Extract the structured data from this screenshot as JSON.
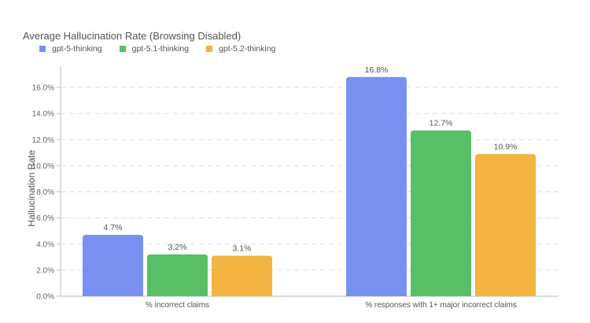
{
  "chart_data": {
    "type": "bar",
    "title": "Average Hallucination Rate (Browsing Disabled)",
    "xlabel": "",
    "ylabel": "Hallucination Rate",
    "ylim": [
      0,
      17.5
    ],
    "yticks": [
      "0.0%",
      "2.0%",
      "4.0%",
      "6.0%",
      "8.0%",
      "10.0%",
      "12.0%",
      "14.0%",
      "16.0%"
    ],
    "grid": true,
    "legend_position": "top-left",
    "categories": [
      "% incorrect claims",
      "% responses with 1+ major incorrect claims"
    ],
    "series": [
      {
        "name": "gpt-5-thinking",
        "color": "#7890f0",
        "values": [
          4.7,
          16.8
        ],
        "labels": [
          "4.7%",
          "16.8%"
        ]
      },
      {
        "name": "gpt-5.1-thinking",
        "color": "#58bf66",
        "values": [
          3.2,
          12.7
        ],
        "labels": [
          "3.2%",
          "12.7%"
        ]
      },
      {
        "name": "gpt-5.2-thinking",
        "color": "#f3b441",
        "values": [
          3.1,
          10.9
        ],
        "labels": [
          "3.1%",
          "10.9%"
        ]
      }
    ]
  }
}
